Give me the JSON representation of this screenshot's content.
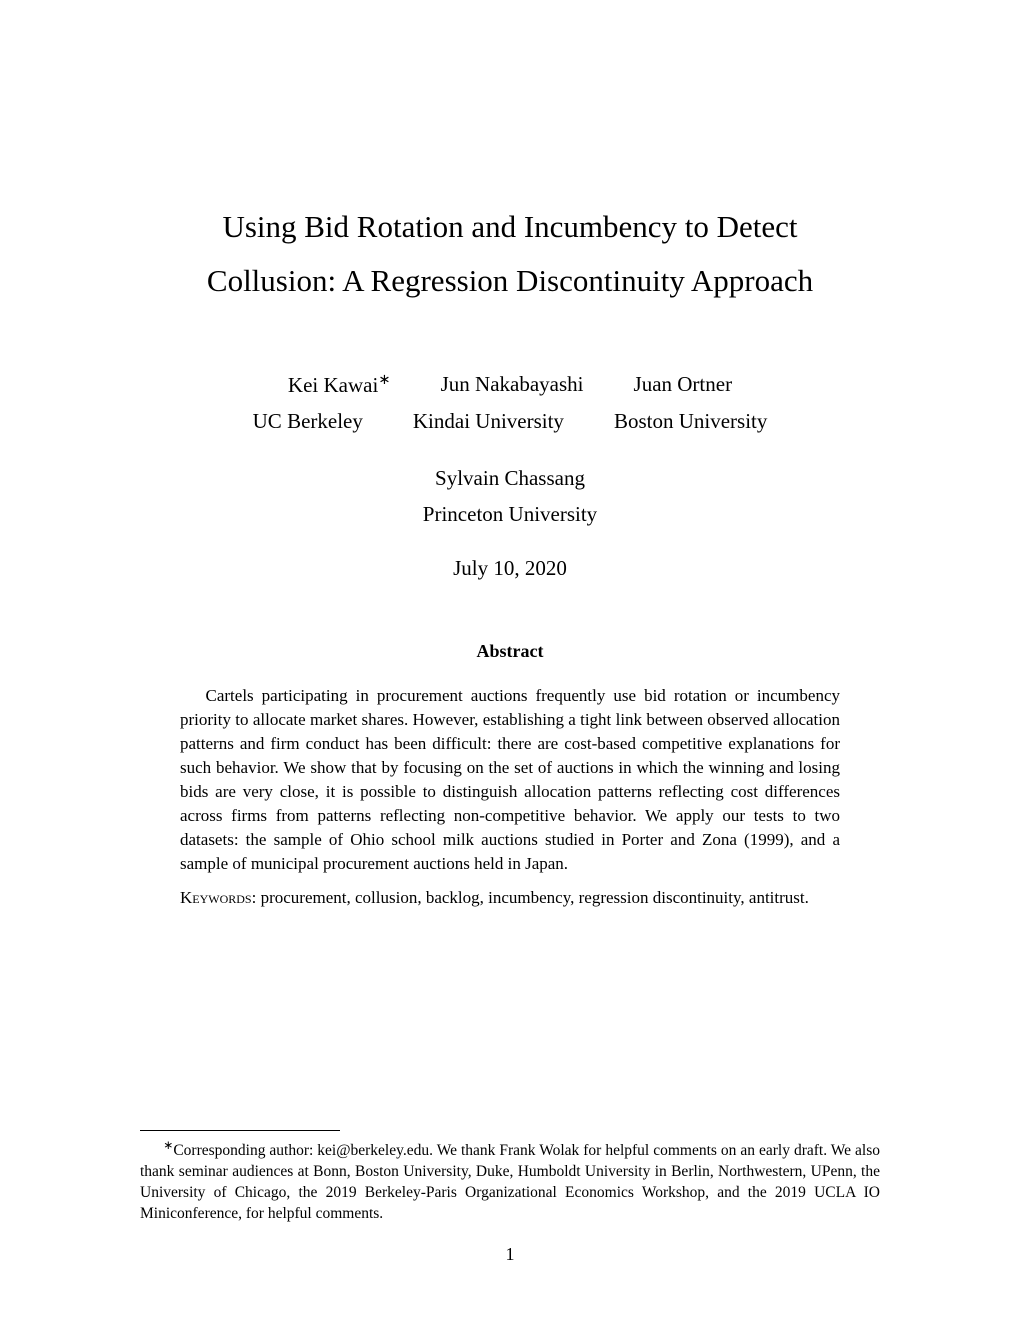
{
  "title_line1": "Using Bid Rotation and Incumbency to Detect",
  "title_line2": "Collusion: A Regression Discontinuity Approach",
  "authors_row1": [
    {
      "name": "Kei Kawai",
      "marker": "∗",
      "affil": "UC Berkeley"
    },
    {
      "name": "Jun Nakabayashi",
      "marker": "",
      "affil": "Kindai University"
    },
    {
      "name": "Juan Ortner",
      "marker": "",
      "affil": "Boston University"
    }
  ],
  "authors_row2": [
    {
      "name": "Sylvain Chassang",
      "marker": "",
      "affil": "Princeton University"
    }
  ],
  "date": "July 10, 2020",
  "abstract_heading": "Abstract",
  "abstract_text": "Cartels participating in procurement auctions frequently use bid rotation or incumbency priority to allocate market shares. However, establishing a tight link between observed allocation patterns and firm conduct has been difficult: there are cost-based competitive explanations for such behavior. We show that by focusing on the set of auctions in which the winning and losing bids are very close, it is possible to distinguish allocation patterns reflecting cost differences across firms from patterns reflecting non-competitive behavior. We apply our tests to two datasets: the sample of Ohio school milk auctions studied in Porter and Zona (1999), and a sample of municipal procurement auctions held in Japan.",
  "keywords_label": "Keywords",
  "keywords_text": ": procurement, collusion, backlog, incumbency, regression discontinuity, antitrust.",
  "footnote_marker": "∗",
  "footnote_text": "Corresponding author: kei@berkeley.edu. We thank Frank Wolak for helpful comments on an early draft. We also thank seminar audiences at Bonn, Boston University, Duke, Humboldt University in Berlin, Northwestern, UPenn, the University of Chicago, the 2019 Berkeley-Paris Organizational Economics Workshop, and the 2019 UCLA IO Miniconference, for helpful comments.",
  "page_number": "1"
}
